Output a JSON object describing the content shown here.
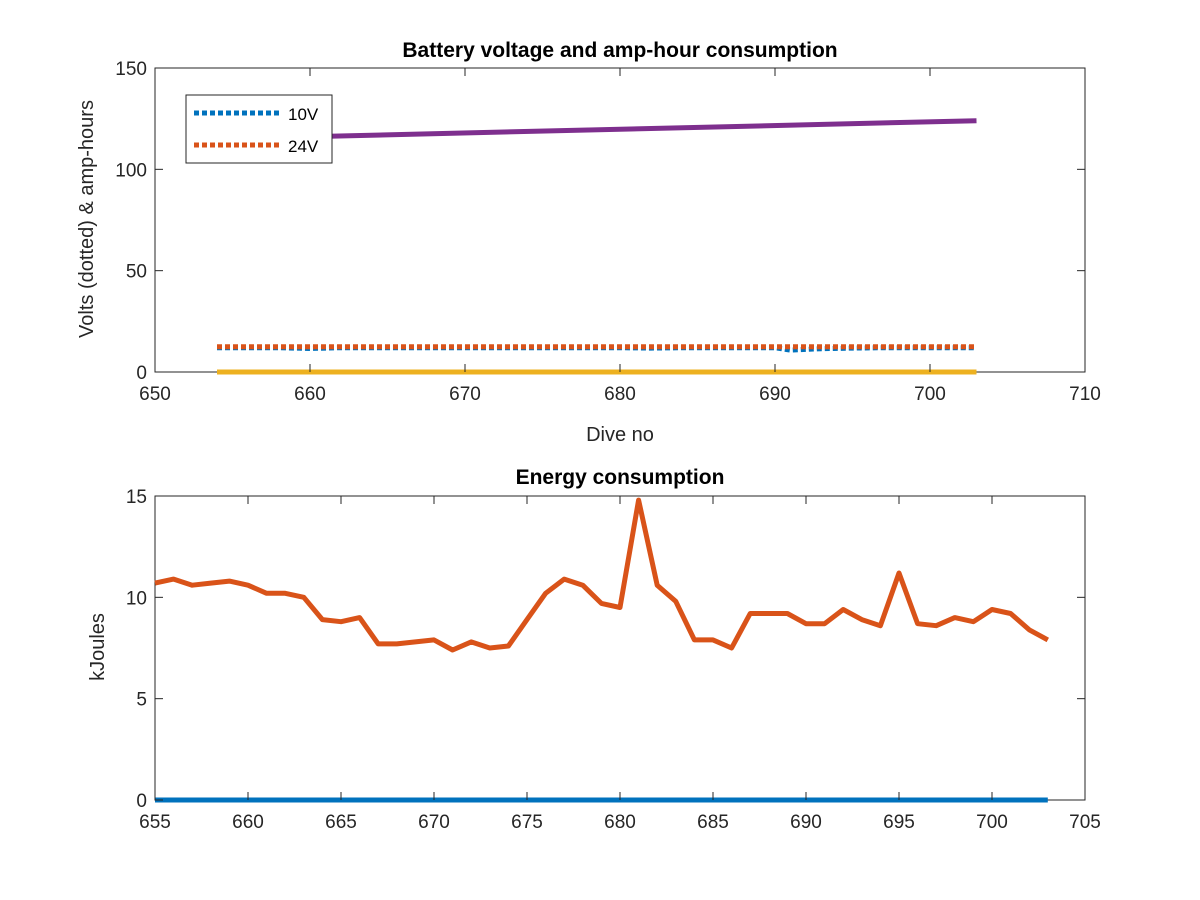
{
  "chart_data": [
    {
      "type": "line",
      "title": "Battery voltage and amp-hour consumption",
      "xlabel": "Dive no",
      "ylabel": "Volts (dotted) & amp-hours",
      "xlim": [
        650,
        710
      ],
      "ylim": [
        0,
        150
      ],
      "xticks": [
        650,
        660,
        670,
        680,
        690,
        700,
        710
      ],
      "yticks": [
        0,
        50,
        100,
        150
      ],
      "legend_position": "top-left",
      "series": [
        {
          "name": "10V",
          "color": "#0072BD",
          "style": "dotted",
          "x": [
            654,
            656,
            658,
            660,
            662,
            664,
            666,
            668,
            670,
            672,
            674,
            676,
            678,
            680,
            682,
            684,
            686,
            688,
            690,
            691,
            693,
            695,
            697,
            699,
            701,
            703
          ],
          "y": [
            12,
            12,
            12,
            11.6,
            12,
            12,
            12,
            12,
            12,
            12,
            12,
            12,
            12,
            12,
            11.8,
            12,
            12,
            12,
            12,
            10.8,
            11.5,
            11.8,
            12,
            12,
            12,
            12
          ]
        },
        {
          "name": "24V",
          "color": "#D95319",
          "style": "dotted",
          "x": [
            654,
            703
          ],
          "y": [
            12.5,
            12.5
          ]
        },
        {
          "color": "#7E2F8E",
          "style": "solid",
          "x": [
            654,
            703
          ],
          "y": [
            115,
            124
          ]
        },
        {
          "color": "#EDB120",
          "style": "solid",
          "x": [
            654,
            703
          ],
          "y": [
            0,
            0
          ]
        }
      ]
    },
    {
      "type": "line",
      "title": "Energy consumption",
      "xlabel": "",
      "ylabel": "kJoules",
      "xlim": [
        655,
        705
      ],
      "ylim": [
        0,
        15
      ],
      "xticks": [
        655,
        660,
        665,
        670,
        675,
        680,
        685,
        690,
        695,
        700,
        705
      ],
      "yticks": [
        0,
        5,
        10,
        15
      ],
      "series": [
        {
          "color": "#D95319",
          "style": "solid",
          "x": [
            655,
            656,
            657,
            658,
            659,
            660,
            661,
            662,
            663,
            664,
            665,
            666,
            667,
            668,
            669,
            670,
            671,
            672,
            673,
            674,
            675,
            676,
            677,
            678,
            679,
            680,
            681,
            682,
            683,
            684,
            685,
            686,
            687,
            688,
            689,
            690,
            691,
            692,
            693,
            694,
            695,
            696,
            697,
            698,
            699,
            700,
            701,
            702,
            703
          ],
          "y": [
            10.7,
            10.9,
            10.6,
            10.7,
            10.8,
            10.6,
            10.2,
            10.2,
            10.0,
            8.9,
            8.8,
            9.0,
            7.7,
            7.7,
            7.8,
            7.9,
            7.4,
            7.8,
            7.5,
            7.6,
            8.9,
            10.2,
            10.9,
            10.6,
            9.7,
            9.5,
            14.8,
            10.6,
            9.8,
            7.9,
            7.9,
            7.5,
            9.2,
            9.2,
            9.2,
            8.7,
            8.7,
            9.4,
            8.9,
            8.6,
            11.2,
            8.7,
            8.6,
            9.0,
            8.8,
            9.4,
            9.2,
            8.4,
            7.9
          ]
        },
        {
          "color": "#0072BD",
          "style": "solid",
          "x": [
            655,
            703
          ],
          "y": [
            0,
            0
          ]
        }
      ]
    }
  ]
}
